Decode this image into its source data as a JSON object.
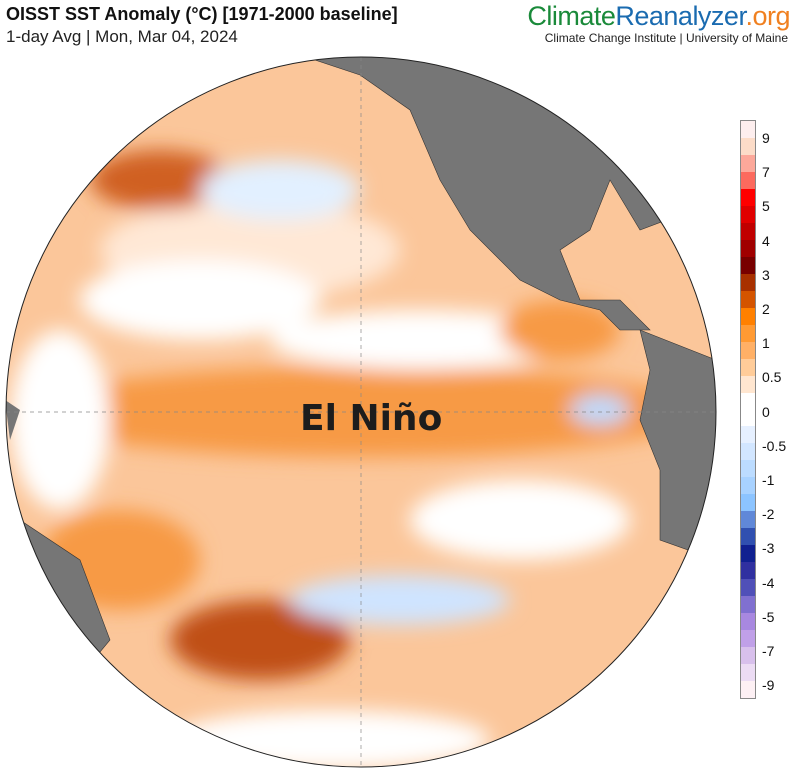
{
  "header": {
    "title": "OISST SST Anomaly (°C) [1971-2000 baseline]",
    "subtitle": "1-day Avg | Mon, Mar 04, 2024"
  },
  "brand": {
    "name_part1": "Climate",
    "name_part2": "Reanalyzer",
    "name_part3": ".org",
    "subtitle": "Climate Change Institute | University of Maine"
  },
  "map": {
    "annotation": "El Niño",
    "land_color": "#767676",
    "projection": "orthographic"
  },
  "colorbar": {
    "labels": [
      "9",
      "7",
      "5",
      "4",
      "3",
      "2",
      "1",
      "0.5",
      "0",
      "-0.5",
      "-1",
      "-2",
      "-3",
      "-4",
      "-5",
      "-7",
      "-9"
    ],
    "colors": [
      "#fdeeee",
      "#fcdcc8",
      "#fca89a",
      "#fc6a5e",
      "#ff0000",
      "#e00000",
      "#c00000",
      "#a00000",
      "#780000",
      "#a83000",
      "#d45400",
      "#ff8000",
      "#ff9a33",
      "#ffb066",
      "#ffcc99",
      "#ffe6d0",
      "#ffffff",
      "#ffffff",
      "#e6f0ff",
      "#d2e6ff",
      "#bcdcff",
      "#a8d2ff",
      "#8cc4ff",
      "#6088d8",
      "#3050b0",
      "#102090",
      "#3030a0",
      "#5050b8",
      "#8070d0",
      "#a888e0",
      "#c0a0e8",
      "#d8c0ec",
      "#ecdcf4",
      "#fdf0f4"
    ]
  }
}
